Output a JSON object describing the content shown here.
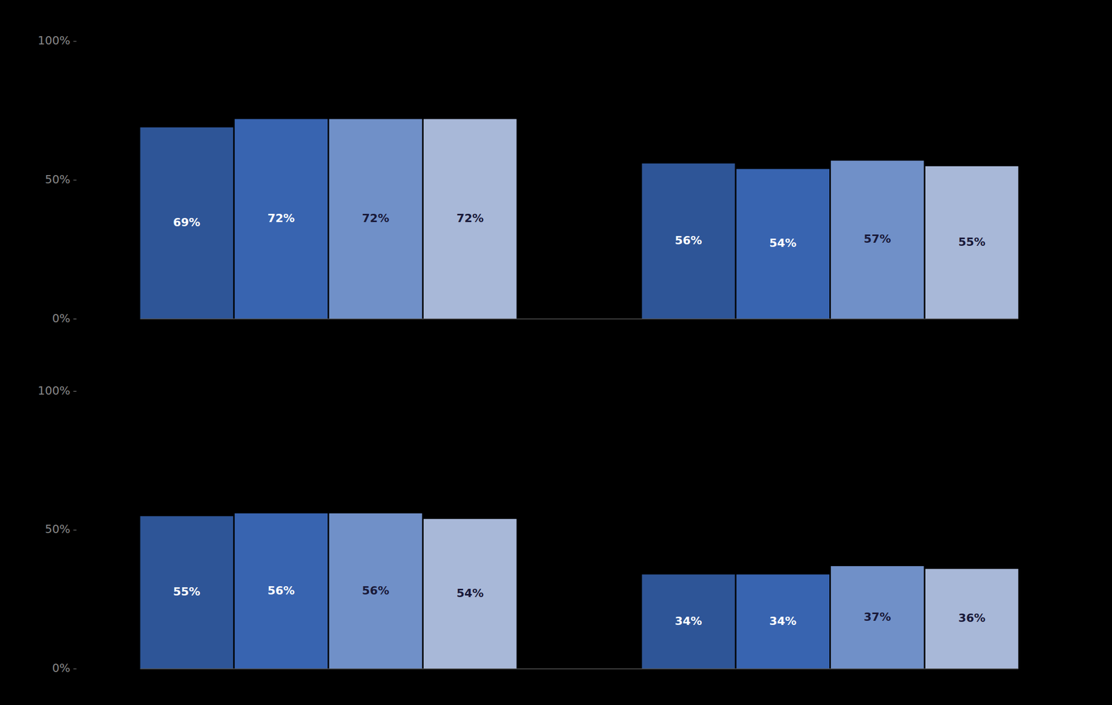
{
  "chart_data": [
    {
      "type": "bar",
      "categories": [
        null,
        null
      ],
      "series": [
        {
          "color": "#2e5597",
          "values": [
            69,
            56
          ],
          "value_labels": [
            "69%",
            "56%"
          ]
        },
        {
          "color": "#3864b0",
          "values": [
            72,
            54
          ],
          "value_labels": [
            "72%",
            "54%"
          ]
        },
        {
          "color": "#7090c8",
          "values": [
            72,
            57
          ],
          "value_labels": [
            "72%",
            "57%"
          ]
        },
        {
          "color": "#a8b8d8",
          "values": [
            72,
            55
          ],
          "value_labels": [
            "72%",
            "55%"
          ]
        }
      ],
      "ylim": [
        0,
        100
      ],
      "yticks": [
        {
          "value": 0,
          "label": "0%"
        },
        {
          "value": 50,
          "label": "50%"
        },
        {
          "value": 100,
          "label": "100%"
        }
      ],
      "grid": false,
      "data_labels": true,
      "tick_labels": "y"
    },
    {
      "type": "bar",
      "categories": [
        null,
        null
      ],
      "series": [
        {
          "color": "#2e5597",
          "values": [
            55,
            34
          ],
          "value_labels": [
            "55%",
            "34%"
          ]
        },
        {
          "color": "#3864b0",
          "values": [
            56,
            34
          ],
          "value_labels": [
            "56%",
            "34%"
          ]
        },
        {
          "color": "#7090c8",
          "values": [
            56,
            37
          ],
          "value_labels": [
            "56%",
            "37%"
          ]
        },
        {
          "color": "#a8b8d8",
          "values": [
            54,
            36
          ],
          "value_labels": [
            "54%",
            "36%"
          ]
        }
      ],
      "ylim": [
        0,
        100
      ],
      "yticks": [
        {
          "value": 0,
          "label": "0%"
        },
        {
          "value": 50,
          "label": "50%"
        },
        {
          "value": 100,
          "label": "100%"
        }
      ],
      "grid": false,
      "data_labels": true,
      "tick_labels": "y"
    }
  ]
}
